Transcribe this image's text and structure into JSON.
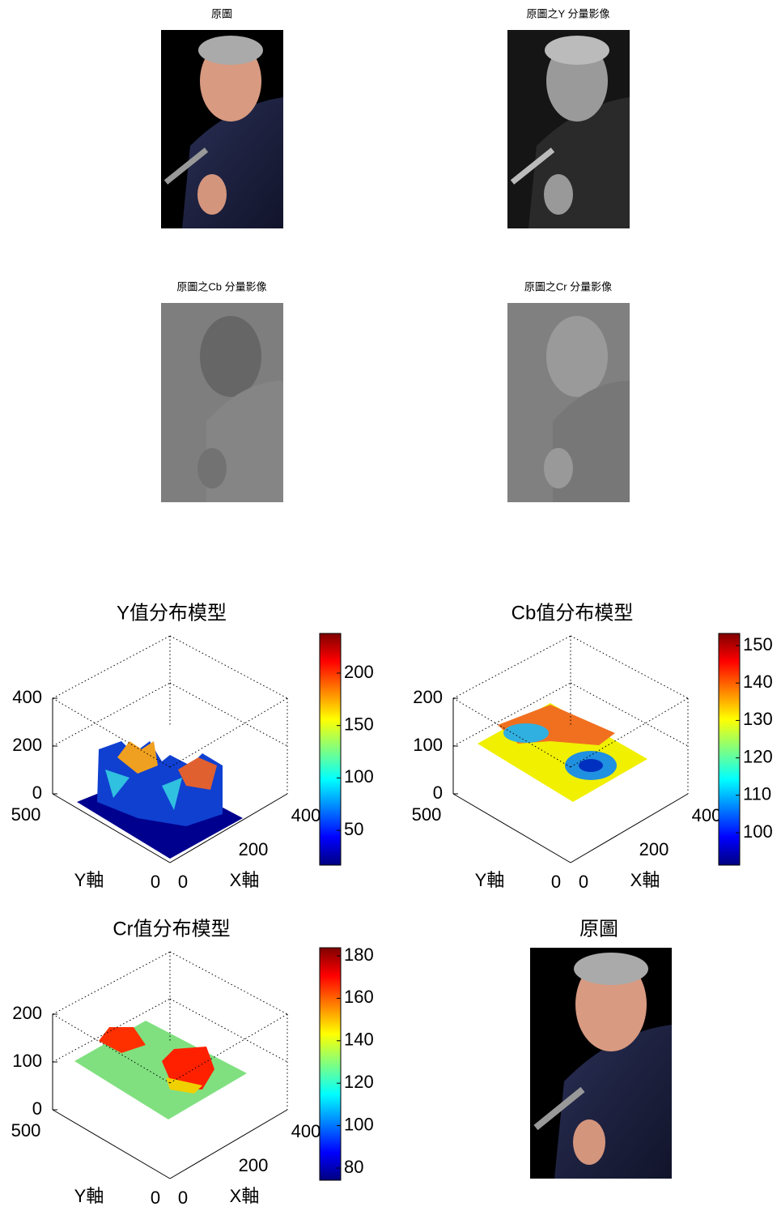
{
  "images": [
    {
      "title": "原圖"
    },
    {
      "title": "原圖之Y 分量影像"
    },
    {
      "title": "原圖之Cb 分量影像"
    },
    {
      "title": "原圖之Cr 分量影像"
    }
  ],
  "plots": [
    {
      "title": "Y值分布模型",
      "zticks": [
        0,
        200,
        400
      ],
      "yticks": [
        0,
        500
      ],
      "xticks": [
        0,
        200,
        400
      ],
      "xlabel": "X軸",
      "ylabel": "Y軸",
      "colorbar_ticks": [
        200,
        150,
        100,
        50
      ]
    },
    {
      "title": "Cb值分布模型",
      "zticks": [
        0,
        100,
        200
      ],
      "yticks": [
        0,
        500
      ],
      "xticks": [
        0,
        200,
        400
      ],
      "xlabel": "X軸",
      "ylabel": "Y軸",
      "colorbar_ticks": [
        150,
        140,
        130,
        120,
        110,
        100
      ]
    },
    {
      "title": "Cr值分布模型",
      "zticks": [
        0,
        100,
        200
      ],
      "yticks": [
        0,
        500
      ],
      "xticks": [
        0,
        200,
        400
      ],
      "xlabel": "X軸",
      "ylabel": "Y軸",
      "colorbar_ticks": [
        180,
        160,
        140,
        120,
        100,
        80
      ]
    }
  ],
  "final_image": {
    "title": "原圖"
  }
}
